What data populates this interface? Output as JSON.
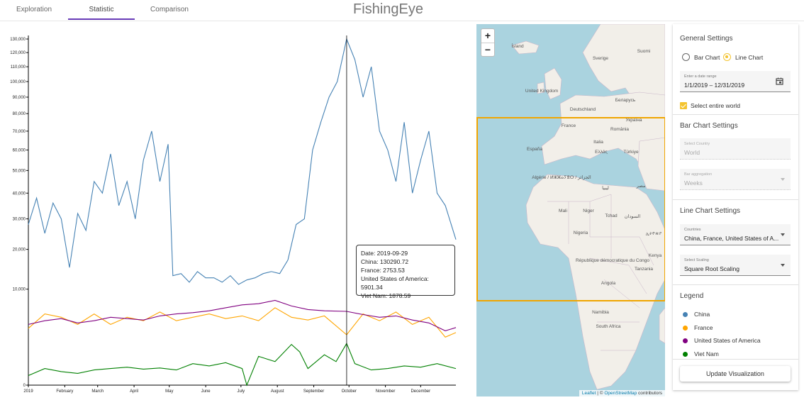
{
  "header": {
    "tabs": [
      {
        "label": "Exploration"
      },
      {
        "label": "Statistic"
      },
      {
        "label": "Comparison"
      }
    ],
    "active_tab": "Statistic",
    "title": "FishingEye"
  },
  "tooltip": {
    "date": "Date: 2019-09-29",
    "lines": [
      "China: 130290.72",
      "France: 2753.53",
      "United States of America: 5901.34",
      "Viet Nam: 1878.59"
    ]
  },
  "map": {
    "zoom_in": "+",
    "zoom_out": "−",
    "attribution": {
      "leaflet": "Leaflet",
      "sep": " | © ",
      "osm": "OpenStreetMap",
      "contributors": " contributors"
    },
    "labels": [
      "Ísland",
      "Sverige",
      "Suomi",
      "United Kingdom",
      "Беларусь",
      "Deutschland",
      "Україна",
      "France",
      "România",
      "España",
      "Italia",
      "Ελλάς",
      "Türkiye",
      "Algérie / ⵍⵣⵣⴰⵢⴻⵔ / الجزائر",
      "ليبيا",
      "مصر",
      "Mali",
      "Niger",
      "Tchad",
      "السودان",
      "Nigeria",
      "République démocratique du Congo",
      "Kenya",
      "Tanzania",
      "Angola",
      "Namibia",
      "South Africa",
      "ኢትዮጵያ"
    ]
  },
  "settings": {
    "general_title": "General Settings",
    "bar_chart_label": "Bar Chart",
    "line_chart_label": "Line Chart",
    "selected_chart": "Line Chart",
    "date_label": "Enter a date range",
    "date_value": "1/1/2019 – 12/31/2019",
    "select_world_label": "Select entire world",
    "bar_title": "Bar Chart Settings",
    "country_label": "Select Country",
    "country_value": "World",
    "aggregation_label": "Bar aggregation",
    "aggregation_value": "Weeks",
    "line_title": "Line Chart Settings",
    "countries_label": "Countries",
    "countries_value": "China, France, United States of A...",
    "scaling_label": "Select Scaling",
    "scaling_value": "Square Root Scaling",
    "legend_title": "Legend",
    "legend": [
      {
        "name": "China",
        "color": "#4682b4"
      },
      {
        "name": "France",
        "color": "#ffa500"
      },
      {
        "name": "United States of America",
        "color": "#800080"
      },
      {
        "name": "Viet Nam",
        "color": "#008000"
      }
    ],
    "update_button": "Update Visualization"
  },
  "chart_data": {
    "type": "line",
    "y_scale": "sqrt",
    "ylim": [
      0,
      130000
    ],
    "y_ticks": [
      0,
      10000,
      20000,
      30000,
      40000,
      50000,
      60000,
      70000,
      80000,
      90000,
      100000,
      110000,
      120000,
      130000
    ],
    "y_tick_labels": [
      "0",
      "10,000",
      "20,000",
      "30,000",
      "40,000",
      "50,000",
      "60,000",
      "70,000",
      "80,000",
      "90,000",
      "100,000",
      "110,000",
      "120,000",
      "130,000"
    ],
    "x_ticks": [
      "2019",
      "February",
      "March",
      "April",
      "May",
      "June",
      "July",
      "August",
      "September",
      "October",
      "November",
      "December"
    ],
    "marker_date": "2019-09-29",
    "series": [
      {
        "name": "China",
        "color": "#4682b4",
        "points": [
          [
            "2019-01-01",
            28000
          ],
          [
            "2019-01-08",
            38000
          ],
          [
            "2019-01-15",
            25000
          ],
          [
            "2019-01-22",
            36000
          ],
          [
            "2019-01-29",
            30000
          ],
          [
            "2019-02-05",
            15000
          ],
          [
            "2019-02-12",
            32000
          ],
          [
            "2019-02-19",
            26000
          ],
          [
            "2019-02-26",
            45000
          ],
          [
            "2019-03-05",
            40000
          ],
          [
            "2019-03-12",
            58000
          ],
          [
            "2019-03-19",
            35000
          ],
          [
            "2019-03-26",
            45000
          ],
          [
            "2019-04-02",
            30000
          ],
          [
            "2019-04-09",
            55000
          ],
          [
            "2019-04-16",
            70000
          ],
          [
            "2019-04-23",
            45000
          ],
          [
            "2019-04-30",
            63000
          ],
          [
            "2019-05-04",
            13000
          ],
          [
            "2019-05-11",
            13500
          ],
          [
            "2019-05-18",
            11500
          ],
          [
            "2019-05-25",
            14000
          ],
          [
            "2019-06-01",
            12500
          ],
          [
            "2019-06-08",
            12500
          ],
          [
            "2019-06-15",
            11500
          ],
          [
            "2019-06-22",
            13000
          ],
          [
            "2019-06-29",
            11000
          ],
          [
            "2019-07-06",
            12000
          ],
          [
            "2019-07-13",
            12500
          ],
          [
            "2019-07-20",
            13500
          ],
          [
            "2019-07-27",
            14000
          ],
          [
            "2019-08-03",
            13500
          ],
          [
            "2019-08-10",
            17000
          ],
          [
            "2019-08-17",
            28000
          ],
          [
            "2019-08-24",
            30000
          ],
          [
            "2019-08-31",
            60000
          ],
          [
            "2019-09-07",
            75000
          ],
          [
            "2019-09-14",
            90000
          ],
          [
            "2019-09-21",
            100000
          ],
          [
            "2019-09-29",
            130000
          ],
          [
            "2019-10-06",
            115000
          ],
          [
            "2019-10-13",
            90000
          ],
          [
            "2019-10-20",
            110000
          ],
          [
            "2019-10-27",
            70000
          ],
          [
            "2019-11-03",
            60000
          ],
          [
            "2019-11-10",
            45000
          ],
          [
            "2019-11-17",
            75000
          ],
          [
            "2019-11-24",
            40000
          ],
          [
            "2019-12-01",
            55000
          ],
          [
            "2019-12-08",
            70000
          ],
          [
            "2019-12-15",
            40000
          ],
          [
            "2019-12-22",
            35000
          ],
          [
            "2019-12-31",
            23000
          ]
        ]
      },
      {
        "name": "France",
        "color": "#ffa500",
        "points": [
          [
            "2019-01-01",
            3500
          ],
          [
            "2019-01-15",
            5500
          ],
          [
            "2019-01-29",
            5000
          ],
          [
            "2019-02-12",
            4000
          ],
          [
            "2019-02-26",
            5500
          ],
          [
            "2019-03-12",
            4000
          ],
          [
            "2019-03-26",
            5000
          ],
          [
            "2019-04-09",
            4500
          ],
          [
            "2019-04-23",
            5800
          ],
          [
            "2019-05-07",
            4500
          ],
          [
            "2019-05-21",
            5000
          ],
          [
            "2019-06-04",
            5500
          ],
          [
            "2019-06-18",
            4800
          ],
          [
            "2019-07-02",
            5200
          ],
          [
            "2019-07-16",
            4500
          ],
          [
            "2019-07-30",
            6500
          ],
          [
            "2019-08-13",
            5000
          ],
          [
            "2019-08-27",
            4600
          ],
          [
            "2019-09-10",
            5200
          ],
          [
            "2019-09-29",
            2753.53
          ],
          [
            "2019-10-13",
            5500
          ],
          [
            "2019-10-27",
            4500
          ],
          [
            "2019-11-10",
            5800
          ],
          [
            "2019-11-24",
            4000
          ],
          [
            "2019-12-08",
            5000
          ],
          [
            "2019-12-22",
            2500
          ],
          [
            "2019-12-31",
            3000
          ]
        ]
      },
      {
        "name": "United States of America",
        "color": "#800080",
        "points": [
          [
            "2019-01-01",
            4000
          ],
          [
            "2019-01-15",
            4500
          ],
          [
            "2019-01-29",
            4800
          ],
          [
            "2019-02-12",
            4200
          ],
          [
            "2019-02-26",
            4500
          ],
          [
            "2019-03-12",
            5000
          ],
          [
            "2019-03-26",
            4800
          ],
          [
            "2019-04-09",
            4600
          ],
          [
            "2019-04-23",
            5200
          ],
          [
            "2019-05-07",
            5500
          ],
          [
            "2019-05-21",
            5700
          ],
          [
            "2019-06-04",
            6000
          ],
          [
            "2019-06-18",
            6500
          ],
          [
            "2019-07-02",
            7000
          ],
          [
            "2019-07-16",
            7200
          ],
          [
            "2019-07-30",
            7800
          ],
          [
            "2019-08-13",
            6800
          ],
          [
            "2019-08-27",
            6200
          ],
          [
            "2019-09-10",
            6000
          ],
          [
            "2019-09-29",
            5901.34
          ],
          [
            "2019-10-13",
            5400
          ],
          [
            "2019-10-27",
            5000
          ],
          [
            "2019-11-10",
            5200
          ],
          [
            "2019-11-24",
            4600
          ],
          [
            "2019-12-08",
            4200
          ],
          [
            "2019-12-22",
            3200
          ],
          [
            "2019-12-31",
            3600
          ]
        ]
      },
      {
        "name": "Viet Nam",
        "color": "#008000",
        "points": [
          [
            "2019-01-01",
            100
          ],
          [
            "2019-01-15",
            300
          ],
          [
            "2019-01-29",
            200
          ],
          [
            "2019-02-12",
            150
          ],
          [
            "2019-02-26",
            250
          ],
          [
            "2019-03-12",
            300
          ],
          [
            "2019-03-26",
            350
          ],
          [
            "2019-04-09",
            280
          ],
          [
            "2019-04-23",
            320
          ],
          [
            "2019-05-07",
            250
          ],
          [
            "2019-05-21",
            500
          ],
          [
            "2019-06-04",
            400
          ],
          [
            "2019-06-18",
            550
          ],
          [
            "2019-07-02",
            300
          ],
          [
            "2019-07-06",
            0
          ],
          [
            "2019-07-16",
            900
          ],
          [
            "2019-07-30",
            600
          ],
          [
            "2019-08-13",
            1800
          ],
          [
            "2019-08-20",
            1200
          ],
          [
            "2019-08-27",
            300
          ],
          [
            "2019-09-10",
            1000
          ],
          [
            "2019-09-20",
            600
          ],
          [
            "2019-09-29",
            1878.59
          ],
          [
            "2019-10-06",
            500
          ],
          [
            "2019-10-20",
            250
          ],
          [
            "2019-11-03",
            300
          ],
          [
            "2019-11-17",
            400
          ],
          [
            "2019-12-01",
            350
          ],
          [
            "2019-12-15",
            500
          ],
          [
            "2019-12-31",
            300
          ]
        ]
      }
    ]
  }
}
